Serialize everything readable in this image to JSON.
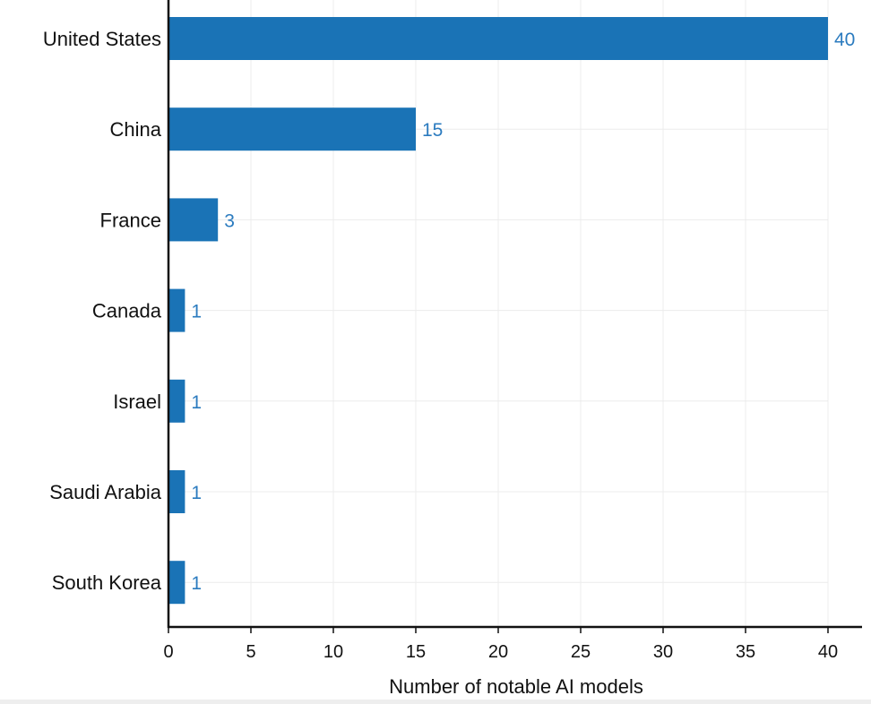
{
  "chart_data": {
    "type": "bar",
    "orientation": "horizontal",
    "categories": [
      "United States",
      "China",
      "France",
      "Canada",
      "Israel",
      "Saudi Arabia",
      "South Korea"
    ],
    "values": [
      40,
      15,
      3,
      1,
      1,
      1,
      1
    ],
    "xlabel": "Number of notable AI models",
    "xlim": [
      0,
      40
    ],
    "xticks": [
      0,
      5,
      10,
      15,
      20,
      25,
      30,
      35,
      40
    ],
    "grid": true,
    "data_labels": true,
    "colors": {
      "bar": "#1a73b6",
      "data_label": "#2b7bbf",
      "axis": "#111111",
      "grid": "#ececec"
    }
  }
}
